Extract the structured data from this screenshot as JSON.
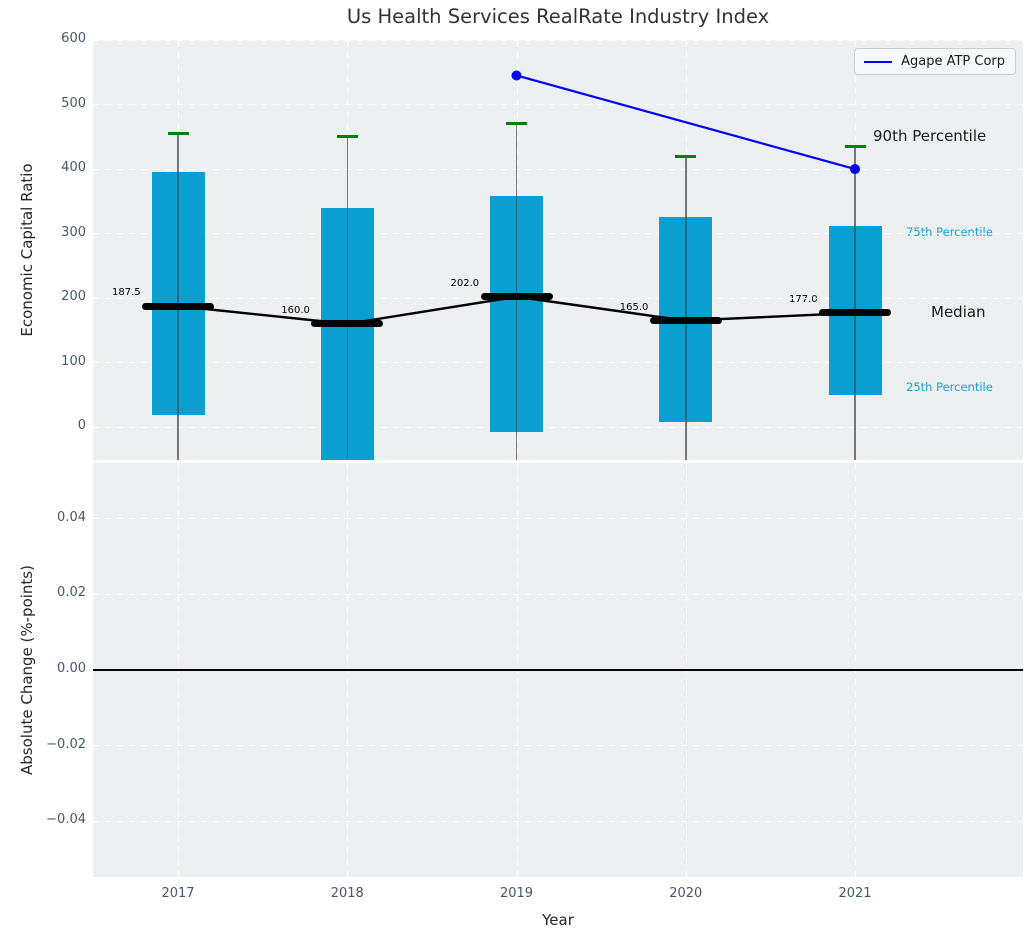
{
  "title": "Us Health Services RealRate Industry Index",
  "colors": {
    "bar": "#0a9ed1",
    "whisker": "#787878",
    "p90_tick": "#008000",
    "series_line": "#0000ff",
    "median": "#000000",
    "axes_bg": "#ecf0f1",
    "grid": "#ffffff",
    "tick_text": "#46586b",
    "cyan_label": "#189fd6"
  },
  "chart_data": [
    {
      "type": "bar",
      "subtype": "percentile-box-with-whiskers",
      "title": "Us Health Services RealRate Industry Index",
      "ylabel": "Economic Capital Ratio",
      "xlabel": "",
      "ylim": [
        -51,
        600
      ],
      "yticks": [
        600,
        500,
        400,
        300,
        200,
        100,
        0
      ],
      "ytick_labels": [
        "600",
        "500",
        "400",
        "300",
        "200",
        "100",
        "0"
      ],
      "categories": [
        "2017",
        "2018",
        "2019",
        "2020",
        "2021"
      ],
      "grid": true,
      "p90": [
        455,
        450,
        470,
        420,
        435
      ],
      "p75": [
        395,
        340,
        358,
        325,
        312
      ],
      "median": [
        187.5,
        160.0,
        202.0,
        165.0,
        177.0
      ],
      "median_labels": [
        "187.5",
        "160.0",
        "202.0",
        "165.0",
        "177.0"
      ],
      "p25": [
        19,
        -55,
        -8,
        8,
        50
      ],
      "whiskers_extend_below_axis": true,
      "right_labels": [
        {
          "text": "90th Percentile",
          "style": "big",
          "anchor": "p90"
        },
        {
          "text": "75th Percentile",
          "style": "small-cyan",
          "anchor": "p75"
        },
        {
          "text": "Median",
          "style": "big",
          "anchor": "median"
        },
        {
          "text": "25th Percentile",
          "style": "small-cyan",
          "anchor": "p25"
        }
      ],
      "series": [
        {
          "name": "Agape ATP Corp",
          "x": [
            "2019",
            "2021"
          ],
          "y": [
            545,
            400
          ],
          "color": "#0000ff"
        }
      ],
      "legend_position": "upper right"
    },
    {
      "type": "line",
      "title": "",
      "ylabel": "Absolute Change (%-points)",
      "xlabel": "Year",
      "ylim": [
        -0.0547,
        0.0547
      ],
      "yticks": [
        0.04,
        0.02,
        0,
        -0.02,
        -0.04
      ],
      "ytick_labels": [
        "0.04",
        "0.02",
        "0.00",
        "−0.02",
        "−0.04"
      ],
      "categories": [
        "2017",
        "2018",
        "2019",
        "2020",
        "2021"
      ],
      "grid": true,
      "zero_line": 0,
      "series": []
    }
  ]
}
